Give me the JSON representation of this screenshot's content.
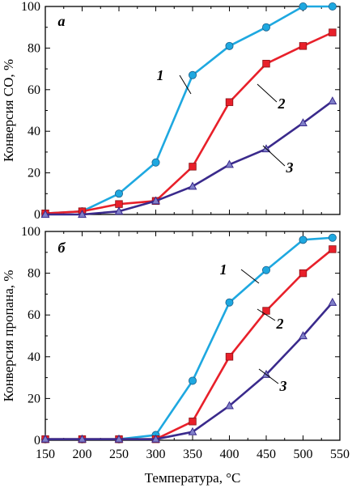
{
  "chart_data": [
    {
      "type": "line",
      "panel_label": "а",
      "ylabel": "Конверсия CO, %",
      "xlim": [
        150,
        550
      ],
      "ylim": [
        0,
        100
      ],
      "yticks": [
        0,
        20,
        40,
        60,
        80,
        100
      ],
      "xticks": [],
      "series": [
        {
          "label": "1",
          "color": "#1ea8e0",
          "marker": "circle",
          "x": [
            150,
            200,
            250,
            300,
            350,
            400,
            450,
            500,
            540
          ],
          "y": [
            0.5,
            1.5,
            10,
            25,
            67,
            81,
            90,
            100,
            100
          ]
        },
        {
          "label": "2",
          "color": "#e8202a",
          "marker": "square",
          "x": [
            150,
            200,
            250,
            300,
            350,
            400,
            450,
            500,
            540
          ],
          "y": [
            0.5,
            1.5,
            5,
            6.5,
            23,
            54,
            72.5,
            81,
            87.5
          ]
        },
        {
          "label": "3",
          "color": "#3a2a8c",
          "marker": "triangle",
          "x": [
            150,
            200,
            250,
            300,
            350,
            400,
            450,
            500,
            540
          ],
          "y": [
            0,
            0,
            1.5,
            6.5,
            13.5,
            24,
            31.5,
            44,
            54.5
          ]
        }
      ]
    },
    {
      "type": "line",
      "panel_label": "б",
      "ylabel": "Конверсия пропана, %",
      "xlabel": "Температура, °C",
      "xlim": [
        150,
        550
      ],
      "ylim": [
        0,
        100
      ],
      "yticks": [
        0,
        20,
        40,
        60,
        80,
        100
      ],
      "xticks": [
        150,
        200,
        250,
        300,
        350,
        400,
        450,
        500,
        550
      ],
      "series": [
        {
          "label": "1",
          "color": "#1ea8e0",
          "marker": "circle",
          "x": [
            150,
            200,
            250,
            300,
            350,
            400,
            450,
            500,
            540
          ],
          "y": [
            0.5,
            0.5,
            0.5,
            2.5,
            28.5,
            66,
            81.5,
            96,
            97
          ]
        },
        {
          "label": "2",
          "color": "#e8202a",
          "marker": "square",
          "x": [
            150,
            200,
            250,
            300,
            350,
            400,
            450,
            500,
            540
          ],
          "y": [
            0.5,
            0.5,
            0.5,
            0.5,
            9,
            40,
            62,
            80,
            91.5
          ]
        },
        {
          "label": "3",
          "color": "#3a2a8c",
          "marker": "triangle",
          "x": [
            150,
            200,
            250,
            300,
            350,
            400,
            450,
            500,
            540
          ],
          "y": [
            0.5,
            0.5,
            0.5,
            0.5,
            4,
            16.5,
            31.5,
            50,
            66
          ]
        }
      ]
    }
  ]
}
